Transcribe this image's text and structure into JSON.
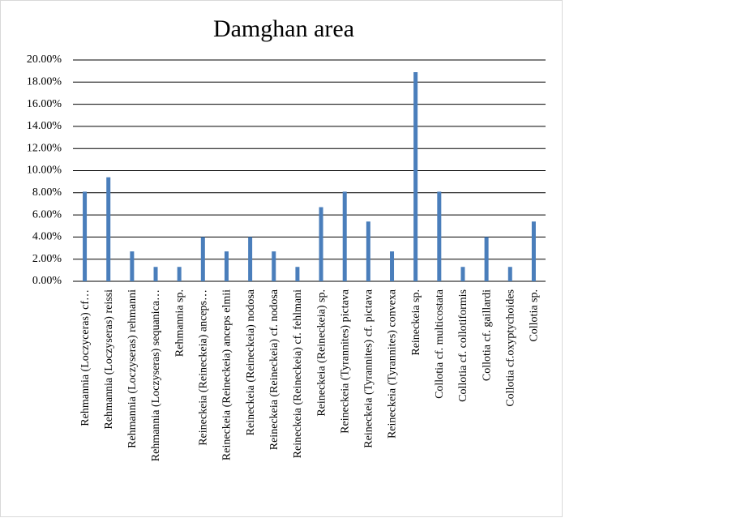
{
  "chart_data": {
    "type": "bar",
    "title": "Damghan area",
    "categories": [
      "Rehmannia (Loczyceras) cf…",
      "Rehmannia (Loczyseras) reissi",
      "Rehmannia (Loczyseras) rehmanni",
      "Rehmannia (Loczyseras) sequanica…",
      "Rehmannia sp.",
      "Reineckeia (Reineckeia) anceps…",
      "Reineckeia (Reineckeia) anceps elmii",
      "Reineckeia (Reineckeia) nodosa",
      "Reineckeia (Reineckeia) cf. nodosa",
      "Reineckeia (Reineckeia) cf. fehlmani",
      "Reineckeia (Reineckeia) sp.",
      "Reineckeia (Tyrannites) pictava",
      "Reineckeia (Tyrannites) cf. pictava",
      "Reineckeia (Tyrannites) convexa",
      "Reineckeia sp.",
      "Collotia cf. multicostata",
      "Collotia cf. collotiformis",
      "Collotia cf. gaillardi",
      "Collotia cf.oxyptychoides",
      "Collotia sp."
    ],
    "values": [
      8.1,
      9.4,
      2.7,
      1.3,
      1.3,
      4.0,
      2.7,
      4.0,
      2.7,
      1.3,
      6.7,
      8.1,
      5.4,
      2.7,
      18.9,
      8.1,
      1.3,
      4.0,
      1.3,
      5.4
    ],
    "color": "#4a7ebb",
    "ylim": [
      0,
      20
    ],
    "yticks": [
      {
        "value": 0,
        "label": "0.00%"
      },
      {
        "value": 2,
        "label": "2.00%"
      },
      {
        "value": 4,
        "label": "4.00%"
      },
      {
        "value": 6,
        "label": "6.00%"
      },
      {
        "value": 8,
        "label": "8.00%"
      },
      {
        "value": 10,
        "label": "10.00%"
      },
      {
        "value": 12,
        "label": "12.00%"
      },
      {
        "value": 14,
        "label": "14.00%"
      },
      {
        "value": 16,
        "label": "16.00%"
      },
      {
        "value": 18,
        "label": "18.00%"
      },
      {
        "value": 20,
        "label": "20.00%"
      }
    ],
    "grid": true
  }
}
